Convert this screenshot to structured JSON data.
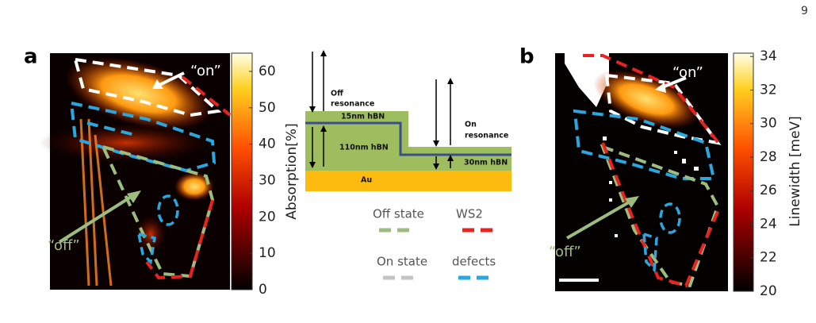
{
  "page_number": "9",
  "panel_a": {
    "label": "a",
    "on_label": "“on”",
    "off_label": "“off”",
    "colorbar": {
      "title": "Absorption[%]",
      "lim": [
        0,
        65
      ],
      "ticks": [
        0,
        10,
        20,
        30,
        40,
        50,
        60
      ]
    }
  },
  "schematic": {
    "off_resonance": [
      "Off",
      "resonance"
    ],
    "layer_top": "15nm hBN",
    "layer_thick": "110nm hBN",
    "on_resonance": [
      "On",
      "resonance"
    ],
    "layer_thin": "30nm hBN",
    "substrate": "Au"
  },
  "legend": [
    {
      "label": "Off state",
      "color": "#9dbd7f"
    },
    {
      "label": "WS2",
      "color": "#e8231f"
    },
    {
      "label": "On state",
      "color": "#c4c4c4"
    },
    {
      "label": "defects",
      "color": "#2aa7de"
    }
  ],
  "panel_b": {
    "label": "b",
    "on_label": "“on”",
    "off_label": "“off”",
    "colorbar": {
      "title": "Linewidth [meV]",
      "lim": [
        20,
        34.2
      ],
      "ticks": [
        20,
        22,
        24,
        26,
        28,
        30,
        32,
        34
      ]
    }
  }
}
